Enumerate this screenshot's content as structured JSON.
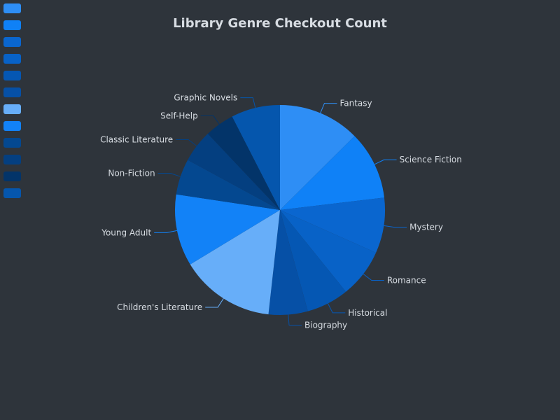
{
  "chart_data": {
    "type": "pie",
    "title": "Library Genre Checkout Count",
    "legend_position": "top-left",
    "slices": [
      {
        "label": "Fantasy",
        "value": 12.5,
        "color": "#2e8ef5"
      },
      {
        "label": "Science Fiction",
        "value": 10.5,
        "color": "#0f81f7"
      },
      {
        "label": "Mystery",
        "value": 8.5,
        "color": "#0a66cf"
      },
      {
        "label": "Romance",
        "value": 7.5,
        "color": "#0862c7"
      },
      {
        "label": "Historical",
        "value": 6.5,
        "color": "#0557b3"
      },
      {
        "label": "Biography",
        "value": 6.0,
        "color": "#0650a6"
      },
      {
        "label": "Children's Literature",
        "value": 14.5,
        "color": "#67aef9"
      },
      {
        "label": "Young Adult",
        "value": 11.0,
        "color": "#1282f7"
      },
      {
        "label": "Non-Fiction",
        "value": 5.5,
        "color": "#044890"
      },
      {
        "label": "Classic Literature",
        "value": 5.0,
        "color": "#043f80"
      },
      {
        "label": "Self-Help",
        "value": 4.5,
        "color": "#033469"
      },
      {
        "label": "Graphic Novels",
        "value": 7.5,
        "color": "#0556ad"
      }
    ]
  }
}
